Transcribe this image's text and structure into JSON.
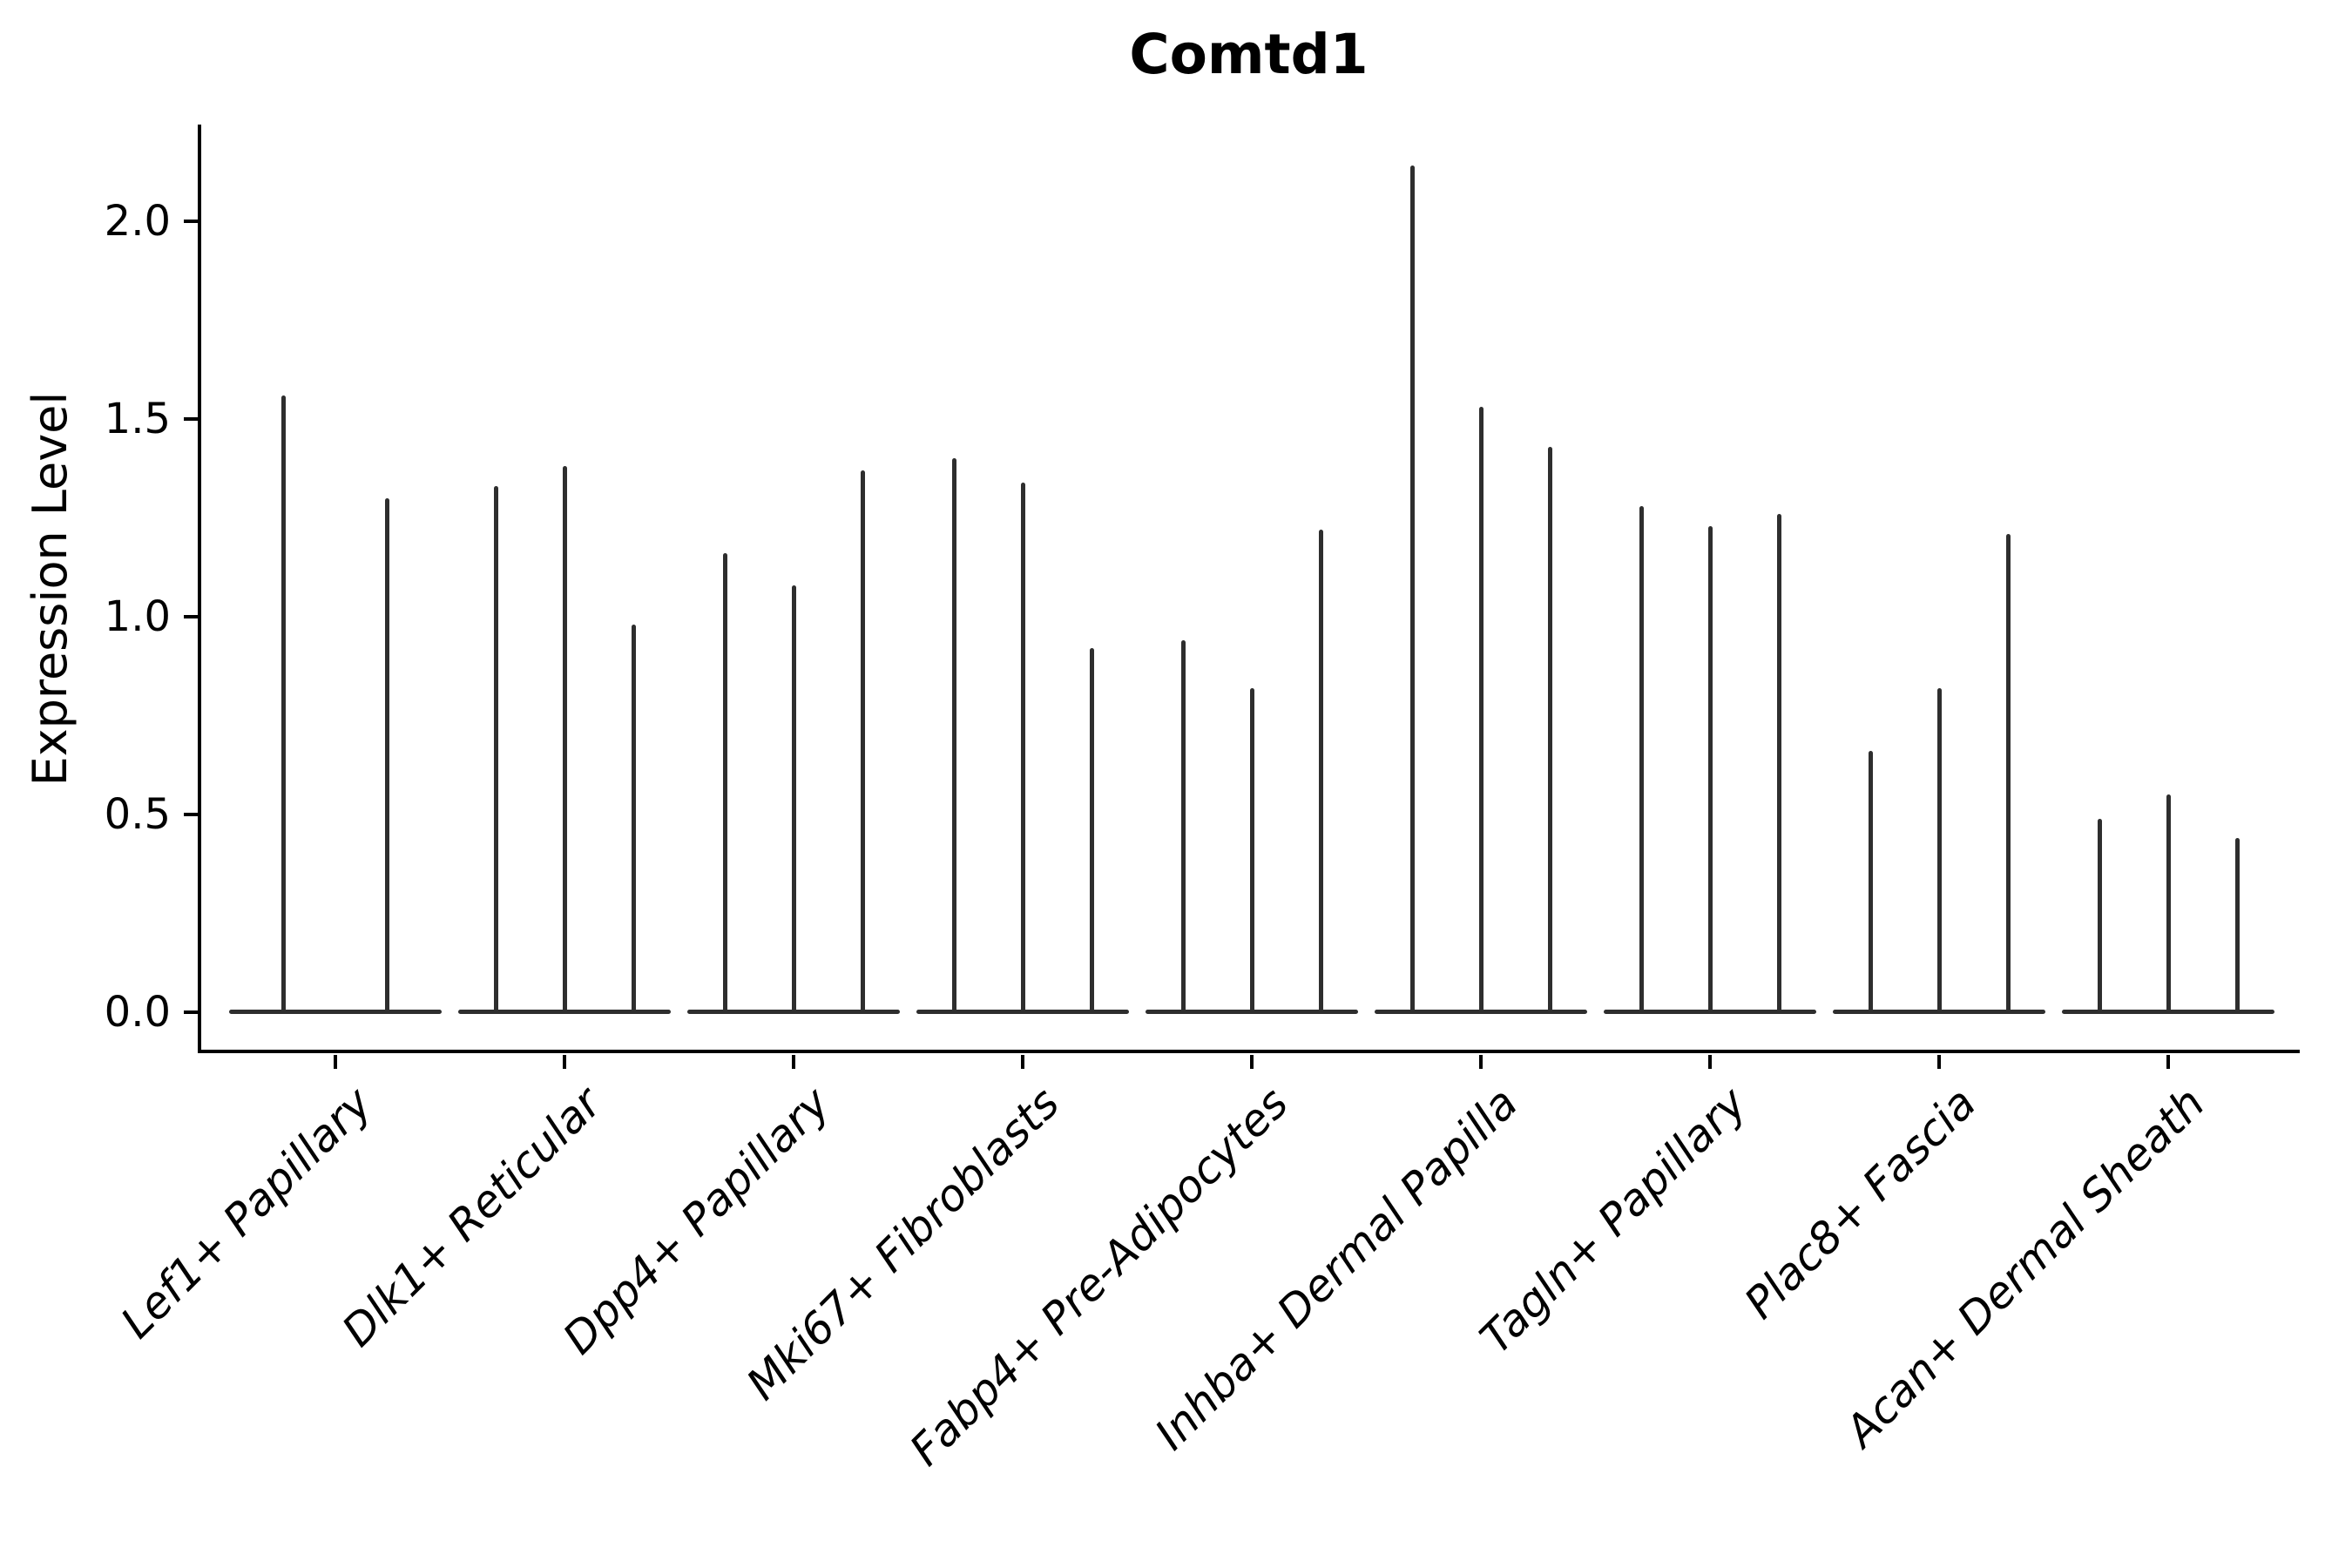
{
  "title": "Comtd1",
  "y_axis": {
    "label": "Expression Level",
    "tick_labels": [
      "0.0",
      "0.5",
      "1.0",
      "1.5",
      "2.0"
    ]
  },
  "style": {
    "violin_color": "#2e2e2e",
    "axis_color": "#000000",
    "background": "#ffffff"
  },
  "chart_data": {
    "type": "violin",
    "title": "Comtd1",
    "xlabel": "",
    "ylabel": "Expression Level",
    "ylim": [
      -0.11,
      2.24
    ],
    "yticks": [
      0.0,
      0.5,
      1.0,
      1.5,
      2.0
    ],
    "grid": false,
    "legend": "none",
    "x_tick_rotation": 45,
    "description": "Needle-thin violins (nearly all density at 0) with narrow spikes rising to the maximum expression value; multiple violins per cell-type group share one flat body at y=0.",
    "categories": [
      "Lef1+ Papillary",
      "Dlk1+ Reticular",
      "Dpp4+ Papillary",
      "Mki67+ Fibroblasts",
      "Fabp4+ Pre-Adipocytes",
      "Inhba+ Dermal Papilla",
      "Tagln+ Papillary",
      "Plac8+ Fascia",
      "Acan+ Dermal Sheath"
    ],
    "groups": [
      {
        "label": "Lef1+ Papillary",
        "violin_peak_values": [
          1.56,
          1.3
        ]
      },
      {
        "label": "Dlk1+ Reticular",
        "violin_peak_values": [
          1.33,
          1.38,
          0.98
        ]
      },
      {
        "label": "Dpp4+ Papillary",
        "violin_peak_values": [
          1.16,
          1.08,
          1.37
        ]
      },
      {
        "label": "Mki67+ Fibroblasts",
        "violin_peak_values": [
          1.4,
          1.34,
          0.92
        ]
      },
      {
        "label": "Fabp4+ Pre-Adipocytes",
        "violin_peak_values": [
          0.94,
          0.82,
          1.22
        ]
      },
      {
        "label": "Inhba+ Dermal Papilla",
        "violin_peak_values": [
          2.14,
          1.53,
          1.43
        ]
      },
      {
        "label": "Tagln+ Papillary",
        "violin_peak_values": [
          1.28,
          1.23,
          1.26
        ]
      },
      {
        "label": "Plac8+ Fascia",
        "violin_peak_values": [
          0.66,
          0.82,
          1.21
        ]
      },
      {
        "label": "Acan+ Dermal Sheath",
        "violin_peak_values": [
          0.49,
          0.55,
          0.44
        ]
      }
    ]
  }
}
